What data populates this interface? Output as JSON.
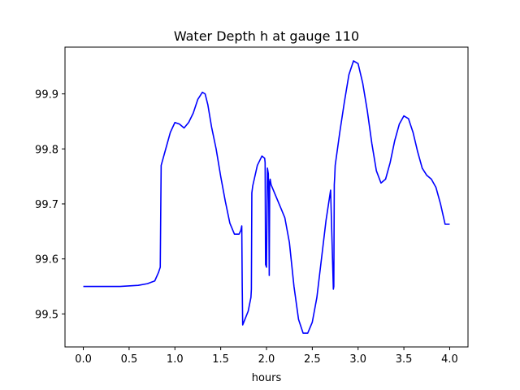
{
  "chart_data": {
    "type": "line",
    "title": "Water Depth h at gauge 110",
    "xlabel": "hours",
    "ylabel": "",
    "xlim": [
      -0.2,
      4.2
    ],
    "ylim": [
      99.44,
      99.985
    ],
    "xticks": [
      0.0,
      0.5,
      1.0,
      1.5,
      2.0,
      2.5,
      3.0,
      3.5,
      4.0
    ],
    "xtick_labels": [
      "0.0",
      "0.5",
      "1.0",
      "1.5",
      "2.0",
      "2.5",
      "3.0",
      "3.5",
      "4.0"
    ],
    "yticks": [
      99.5,
      99.6,
      99.7,
      99.8,
      99.9
    ],
    "ytick_labels": [
      "99.5",
      "99.6",
      "99.7",
      "99.8",
      "99.9"
    ],
    "grid": false,
    "series": [
      {
        "color": "#0000ff",
        "x": [
          0.0,
          0.2,
          0.4,
          0.6,
          0.7,
          0.78,
          0.82,
          0.84,
          0.845,
          0.85,
          0.9,
          0.95,
          1.0,
          1.05,
          1.1,
          1.15,
          1.2,
          1.25,
          1.3,
          1.33,
          1.36,
          1.4,
          1.45,
          1.5,
          1.55,
          1.6,
          1.65,
          1.7,
          1.72,
          1.73,
          1.735,
          1.74,
          1.8,
          1.83,
          1.835,
          1.84,
          1.85,
          1.9,
          1.95,
          1.98,
          1.985,
          1.99,
          2.0,
          2.01,
          2.02,
          2.025,
          2.03,
          2.035,
          2.04,
          2.045,
          2.05,
          2.1,
          2.15,
          2.2,
          2.25,
          2.3,
          2.35,
          2.4,
          2.45,
          2.5,
          2.55,
          2.6,
          2.65,
          2.7,
          2.73,
          2.735,
          2.74,
          2.745,
          2.75,
          2.8,
          2.85,
          2.9,
          2.95,
          3.0,
          3.05,
          3.1,
          3.15,
          3.2,
          3.25,
          3.3,
          3.35,
          3.4,
          3.45,
          3.5,
          3.55,
          3.6,
          3.65,
          3.7,
          3.75,
          3.8,
          3.85,
          3.9,
          3.95,
          4.0
        ],
        "y": [
          99.55,
          99.55,
          99.55,
          99.552,
          99.555,
          99.56,
          99.575,
          99.585,
          99.68,
          99.77,
          99.8,
          99.83,
          99.848,
          99.845,
          99.838,
          99.848,
          99.865,
          99.89,
          99.903,
          99.9,
          99.88,
          99.84,
          99.8,
          99.75,
          99.705,
          99.665,
          99.645,
          99.645,
          99.652,
          99.66,
          99.55,
          99.48,
          99.505,
          99.53,
          99.545,
          99.72,
          99.733,
          99.77,
          99.787,
          99.783,
          99.775,
          99.59,
          99.585,
          99.765,
          99.755,
          99.7,
          99.57,
          99.74,
          99.745,
          99.74,
          99.735,
          99.715,
          99.695,
          99.675,
          99.63,
          99.55,
          99.49,
          99.465,
          99.465,
          99.485,
          99.53,
          99.6,
          99.67,
          99.725,
          99.545,
          99.55,
          99.735,
          99.75,
          99.77,
          99.83,
          99.885,
          99.935,
          99.96,
          99.955,
          99.92,
          99.87,
          99.81,
          99.76,
          99.738,
          99.745,
          99.775,
          99.815,
          99.845,
          99.86,
          99.855,
          99.83,
          99.795,
          99.765,
          99.752,
          99.745,
          99.73,
          99.7,
          99.663,
          99.663
        ]
      }
    ]
  }
}
